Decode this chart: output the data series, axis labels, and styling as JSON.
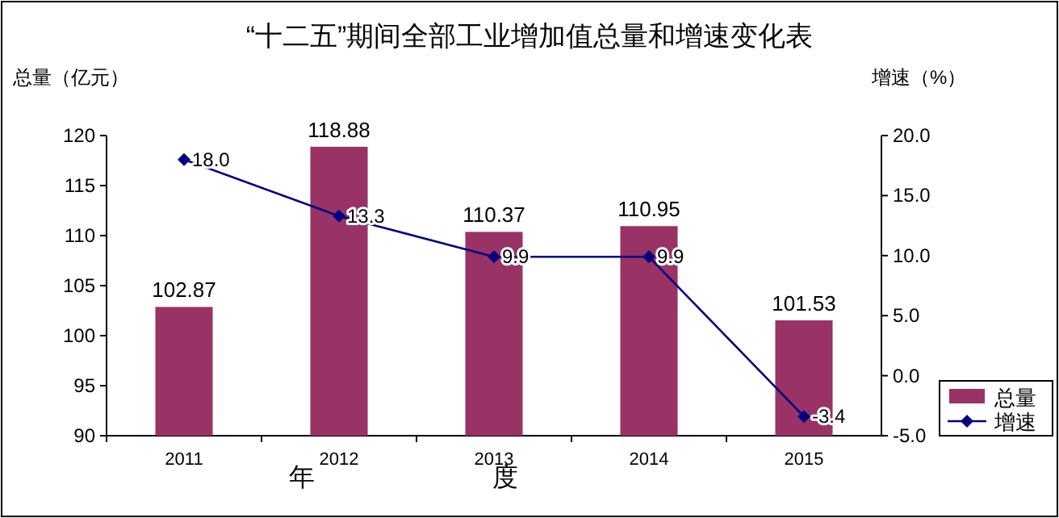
{
  "chart_data": {
    "type": "bar",
    "title": "“十二五”期间全部工业增加值总量和增速变化表",
    "ylabel": "总量（亿元）",
    "y2label": "增速（%）",
    "xlabel": "年度",
    "categories": [
      "2011",
      "2012",
      "2013",
      "2014",
      "2015"
    ],
    "series": [
      {
        "name": "总量",
        "color": "#993366",
        "values": [
          102.87,
          118.88,
          110.37,
          110.95,
          101.53
        ]
      },
      {
        "name": "增速",
        "type": "line",
        "axis": "y2",
        "color": "#000080",
        "marker": "diamond",
        "values": [
          18.0,
          13.3,
          9.9,
          9.9,
          -3.4
        ],
        "value_labels": [
          "18.0",
          "13.3",
          "9.9",
          "9.9",
          "-3.4"
        ]
      }
    ],
    "data_labels": true,
    "ylim": [
      90,
      120
    ],
    "yticks": [
      90,
      95,
      100,
      105,
      110,
      115,
      120
    ],
    "y2lim": [
      -5,
      20
    ],
    "y2ticks": [
      {
        "value": -5,
        "label": "-5.0"
      },
      {
        "value": 0,
        "label": "0.0"
      },
      {
        "value": 5,
        "label": "5.0"
      },
      {
        "value": 10,
        "label": "10.0"
      },
      {
        "value": 15,
        "label": "15.0"
      },
      {
        "value": 20,
        "label": "20.0"
      }
    ],
    "legend": "bottom right",
    "grid": false
  }
}
